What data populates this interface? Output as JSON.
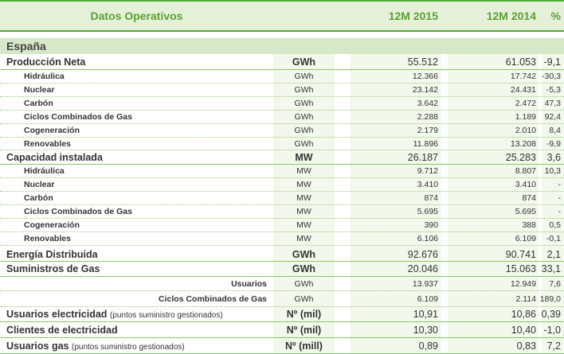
{
  "header": {
    "title": "Datos Operativos",
    "col1": "12M 2015",
    "col2": "12M 2014",
    "col3": "%"
  },
  "section": "España",
  "rows": [
    {
      "label": "Producción Neta",
      "unit": "GWh",
      "v1": "55.512",
      "v2": "61.053",
      "pct": "-9,1",
      "level": 1
    },
    {
      "label": "Hidráulica",
      "unit": "GWh",
      "v1": "12.366",
      "v2": "17.742",
      "pct": "-30,3",
      "level": 2
    },
    {
      "label": "Nuclear",
      "unit": "GWh",
      "v1": "23.142",
      "v2": "24.431",
      "pct": "-5,3",
      "level": 2
    },
    {
      "label": "Carbón",
      "unit": "GWh",
      "v1": "3.642",
      "v2": "2.472",
      "pct": "47,3",
      "level": 2
    },
    {
      "label": "Ciclos Combinados de Gas",
      "unit": "GWh",
      "v1": "2.288",
      "v2": "1.189",
      "pct": "92,4",
      "level": 2
    },
    {
      "label": "Cogeneración",
      "unit": "GWh",
      "v1": "2.179",
      "v2": "2.010",
      "pct": "8,4",
      "level": 2
    },
    {
      "label": "Renovables",
      "unit": "GWh",
      "v1": "11.896",
      "v2": "13.208",
      "pct": "-9,9",
      "level": 2
    },
    {
      "label": "Capacidad instalada",
      "unit": "MW",
      "v1": "26.187",
      "v2": "25.283",
      "pct": "3,6",
      "level": 1
    },
    {
      "label": "Hidráulica",
      "unit": "MW",
      "v1": "9.712",
      "v2": "8.807",
      "pct": "10,3",
      "level": 2
    },
    {
      "label": "Nuclear",
      "unit": "MW",
      "v1": "3.410",
      "v2": "3.410",
      "pct": "-",
      "level": 2
    },
    {
      "label": "Carbón",
      "unit": "MW",
      "v1": "874",
      "v2": "874",
      "pct": "-",
      "level": 2
    },
    {
      "label": "Ciclos Combinados de Gas",
      "unit": "MW",
      "v1": "5.695",
      "v2": "5.695",
      "pct": "-",
      "level": 2
    },
    {
      "label": "Cogeneración",
      "unit": "MW",
      "v1": "390",
      "v2": "388",
      "pct": "0,5",
      "level": 2
    },
    {
      "label": "Renovables",
      "unit": "MW",
      "v1": "6.106",
      "v2": "6.109",
      "pct": "-0,1",
      "level": 2
    },
    {
      "label": "Energía Distribuida",
      "unit": "GWh",
      "v1": "92.676",
      "v2": "90.741",
      "pct": "2,1",
      "level": 1
    },
    {
      "label": "Suministros de Gas",
      "unit": "GWh",
      "v1": "20.046",
      "v2": "15.063",
      "pct": "33,1",
      "level": 1
    },
    {
      "label": "Usuarios",
      "unit": "GWh",
      "v1": "13.937",
      "v2": "12.949",
      "pct": "7,6",
      "level": 3
    },
    {
      "label": "Ciclos Combinados de Gas",
      "unit": "GWh",
      "v1": "6.109",
      "v2": "2.114",
      "pct": "189,0",
      "level": 3
    },
    {
      "label": "Usuarios electricidad",
      "note": "(puntos suministro gestionados)",
      "unit": "Nº (mil)",
      "v1": "10,91",
      "v2": "10,86",
      "pct": "0,39",
      "level": 1
    },
    {
      "label": "Clientes de electricidad",
      "unit": "Nº (mil)",
      "v1": "10,30",
      "v2": "10,40",
      "pct": "-1,0",
      "level": 1
    },
    {
      "label": "Usuarios gas",
      "note": "(puntos suministro gestionados)",
      "unit": "Nº (mill)",
      "v1": "0,89",
      "v2": "0,83",
      "pct": "7,2",
      "level": 1
    }
  ]
}
